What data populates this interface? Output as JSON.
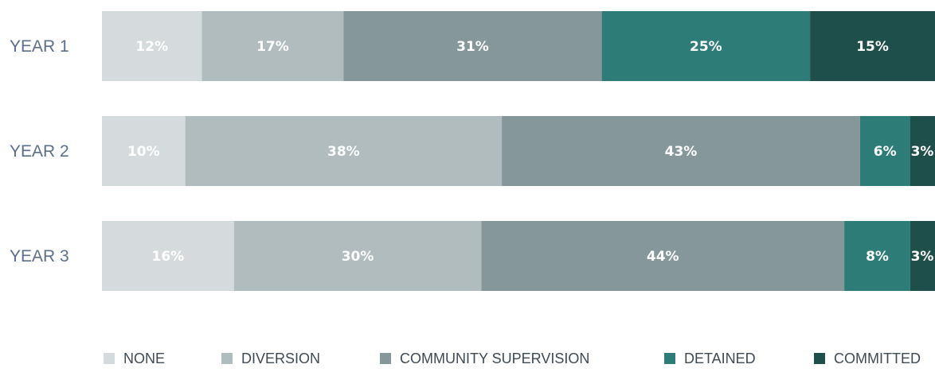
{
  "chart_data": {
    "type": "bar",
    "orientation": "horizontal",
    "stacked": true,
    "normalized": true,
    "categories": [
      "YEAR 1",
      "YEAR 2",
      "YEAR 3"
    ],
    "series": [
      {
        "name": "NONE",
        "values": [
          12,
          10,
          16
        ],
        "color": "#d5dbdc"
      },
      {
        "name": "DIVERSION",
        "values": [
          17,
          38,
          30
        ],
        "color": "#b0bcbd"
      },
      {
        "name": "COMMUNITY SUPERVISION",
        "values": [
          31,
          43,
          44
        ],
        "color": "#86979a"
      },
      {
        "name": "DETAINED",
        "values": [
          25,
          6,
          8
        ],
        "color": "#2d7c78"
      },
      {
        "name": "COMMITTED",
        "values": [
          15,
          3,
          3
        ],
        "color": "#1f4f4a"
      }
    ],
    "value_suffix": "%",
    "legend_position": "bottom",
    "grid": false
  }
}
